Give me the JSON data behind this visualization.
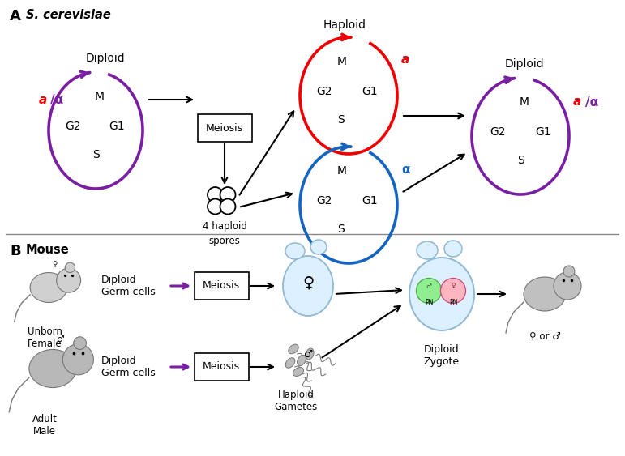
{
  "purple": "#7B1FA2",
  "red": "#EE0000",
  "blue": "#1565C0",
  "black": "#000000",
  "gray_light": "#BBBBBB",
  "gray_mid": "#999999",
  "gray_dark": "#777777",
  "light_blue_edge": "#90B8D4",
  "light_blue_fill": "#DCF0FF",
  "green_fill": "#90EE90",
  "pink_fill": "#FFB6C1",
  "white": "#FFFFFF",
  "panel_A": "A",
  "panel_B": "B",
  "title_A": "S. cerevisiae",
  "title_B": "Mouse"
}
